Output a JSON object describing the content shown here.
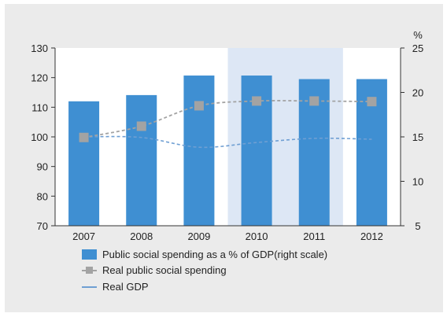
{
  "chart_data": {
    "type": "bar",
    "categories": [
      "2007",
      "2008",
      "2009",
      "2010",
      "2011",
      "2012"
    ],
    "left_axis": {
      "ylim": [
        70,
        130
      ],
      "ticks": [
        70,
        80,
        90,
        100,
        110,
        120,
        130
      ]
    },
    "right_axis": {
      "unit": "%",
      "ylim": [
        5,
        25
      ],
      "ticks": [
        5,
        10,
        15,
        20,
        25
      ]
    },
    "shaded_categories": [
      "2010",
      "2011"
    ],
    "series": [
      {
        "name": "Public social spending as a % of GDP(right scale)",
        "type": "bar",
        "axis": "right",
        "values": [
          19.0,
          19.7,
          21.9,
          21.9,
          21.5,
          21.5
        ]
      },
      {
        "name": "Real public social spending",
        "type": "line-marker",
        "axis": "left",
        "values": [
          99.8,
          103.6,
          110.5,
          112.1,
          112.1,
          111.9
        ]
      },
      {
        "name": "Real GDP",
        "type": "line",
        "axis": "left",
        "values": [
          100,
          99.8,
          96.5,
          98.1,
          99.5,
          99.2
        ]
      }
    ],
    "colors": {
      "bar": "#3f8fd2",
      "marker": "#a3a3a3",
      "spending_line": "#a3a3a3",
      "gdp_line": "#6f9fd3",
      "shade": "#dde7f5",
      "panel": "#ebebeb",
      "plot": "#ffffff"
    },
    "grid": false,
    "legend_position": "bottom"
  }
}
